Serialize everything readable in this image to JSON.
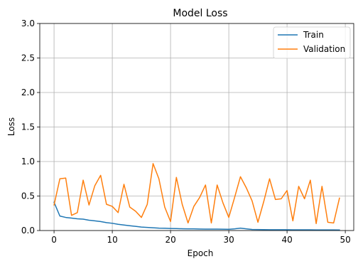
{
  "chart_data": {
    "type": "line",
    "title": "Model Loss",
    "xlabel": "Epoch",
    "ylabel": "Loss",
    "xlim": [
      -2.45,
      51.45
    ],
    "ylim": [
      0,
      3.0
    ],
    "xticks": [
      0,
      10,
      20,
      30,
      40,
      50
    ],
    "yticks": [
      0.0,
      0.5,
      1.0,
      1.5,
      2.0,
      2.5,
      3.0
    ],
    "xtick_labels": [
      "0",
      "10",
      "20",
      "30",
      "40",
      "50"
    ],
    "ytick_labels": [
      "0.0",
      "0.5",
      "1.0",
      "1.5",
      "2.0",
      "2.5",
      "3.0"
    ],
    "grid": true,
    "legend_position": "top-right",
    "x": [
      0,
      1,
      2,
      3,
      4,
      5,
      6,
      7,
      8,
      9,
      10,
      11,
      12,
      13,
      14,
      15,
      16,
      17,
      18,
      19,
      20,
      21,
      22,
      23,
      24,
      25,
      26,
      27,
      28,
      29,
      30,
      31,
      32,
      33,
      34,
      35,
      36,
      37,
      38,
      39,
      40,
      41,
      42,
      43,
      44,
      45,
      46,
      47,
      48,
      49
    ],
    "series": [
      {
        "name": "Train",
        "color": "#1f77b4",
        "values": [
          0.41,
          0.21,
          0.19,
          0.18,
          0.17,
          0.165,
          0.15,
          0.14,
          0.13,
          0.115,
          0.105,
          0.09,
          0.08,
          0.07,
          0.06,
          0.05,
          0.045,
          0.04,
          0.035,
          0.033,
          0.03,
          0.028,
          0.026,
          0.025,
          0.024,
          0.022,
          0.021,
          0.02,
          0.02,
          0.019,
          0.018,
          0.025,
          0.035,
          0.025,
          0.015,
          0.014,
          0.013,
          0.012,
          0.012,
          0.011,
          0.011,
          0.01,
          0.01,
          0.01,
          0.01,
          0.009,
          0.009,
          0.009,
          0.009,
          0.008
        ]
      },
      {
        "name": "Validation",
        "color": "#ff7f0e",
        "values": [
          0.37,
          0.75,
          0.76,
          0.22,
          0.26,
          0.73,
          0.37,
          0.65,
          0.8,
          0.38,
          0.35,
          0.26,
          0.67,
          0.34,
          0.28,
          0.19,
          0.38,
          0.97,
          0.75,
          0.34,
          0.13,
          0.77,
          0.38,
          0.11,
          0.35,
          0.48,
          0.66,
          0.11,
          0.66,
          0.4,
          0.19,
          0.48,
          0.78,
          0.62,
          0.43,
          0.12,
          0.42,
          0.75,
          0.45,
          0.46,
          0.58,
          0.14,
          0.64,
          0.46,
          0.73,
          0.1,
          0.64,
          0.12,
          0.11,
          0.47
        ]
      }
    ]
  }
}
